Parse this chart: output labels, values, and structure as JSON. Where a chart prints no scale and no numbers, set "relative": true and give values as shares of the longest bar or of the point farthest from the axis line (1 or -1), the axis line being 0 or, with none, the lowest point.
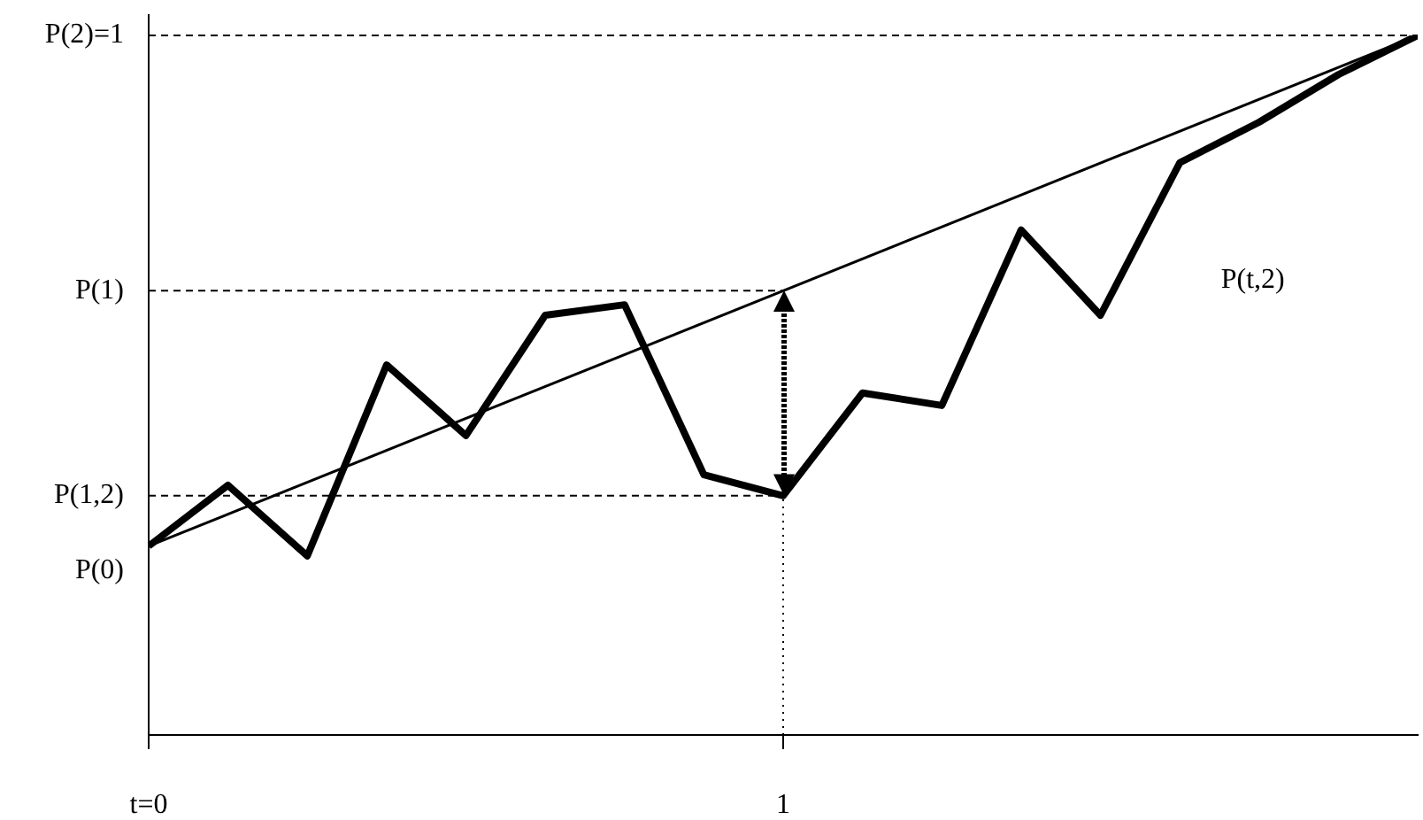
{
  "chart_data": {
    "type": "line",
    "xlim": [
      0,
      2
    ],
    "relative": true,
    "xticks": [
      {
        "value": 0,
        "label": "t=0"
      },
      1
    ],
    "series": [
      {
        "color": "#000000",
        "x": [
          0,
          0.125,
          0.25,
          0.375,
          0.5,
          0.625,
          0.75,
          0.875,
          1,
          1.125,
          1.25,
          1.375,
          1.5,
          1.625,
          1.75,
          1.875,
          2
        ],
        "values": [
          0.27,
          0.357,
          0.256,
          0.529,
          0.428,
          0.6,
          0.615,
          0.372,
          0.342,
          0.489,
          0.471,
          0.722,
          0.6,
          0.818,
          0.876,
          0.944,
          1
        ]
      },
      {
        "color": "#000000",
        "x": [
          0,
          2
        ],
        "values": [
          0.27,
          1
        ]
      }
    ],
    "ref_lines": [
      {
        "axis": "y",
        "value": 1,
        "label": "P(2)=1",
        "line_style": "dashed"
      },
      {
        "axis": "y",
        "value": 0.635,
        "label": "P(1)",
        "line_style": "dashed"
      },
      {
        "axis": "y",
        "value": 0.342,
        "label": "P(1,2)",
        "line_style": "dashed"
      },
      {
        "axis": "x",
        "value": 1,
        "line_style": "dotted"
      }
    ],
    "annotations": [
      {
        "text": "P(0)",
        "x": 0,
        "y": 0.27
      },
      "P(t,2)"
    ],
    "marker": "none",
    "grid": false,
    "legend": false
  }
}
